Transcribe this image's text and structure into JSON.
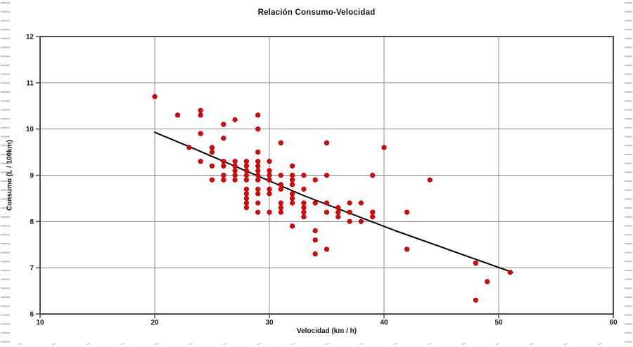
{
  "chart_data": {
    "type": "scatter",
    "title": "Relación Consumo-Velocidad",
    "xlabel": "Velocidad (km / h)",
    "ylabel": "Consumo (L / 100km)",
    "xlim": [
      10,
      60
    ],
    "ylim": [
      6,
      12
    ],
    "x_ticks": [
      10,
      20,
      30,
      40,
      50,
      60
    ],
    "y_ticks": [
      12,
      11,
      10,
      9,
      8,
      7,
      6
    ],
    "grid": true,
    "legend": "none",
    "colors": {
      "point_fill": "#e60000",
      "point_edge": "#a00000",
      "trend_line": "#000000",
      "grid_line": "#909090",
      "frame_line": "#4d4d4d",
      "edge_dash": "#c3c3c3",
      "bottom_mark": "#cfcfcf",
      "text": "#14141c"
    },
    "points": [
      [
        20,
        10.7
      ],
      [
        22,
        10.3
      ],
      [
        23,
        9.6
      ],
      [
        24,
        10.4
      ],
      [
        24,
        10.3
      ],
      [
        24,
        9.9
      ],
      [
        24,
        9.3
      ],
      [
        25,
        9.6
      ],
      [
        25,
        9.5
      ],
      [
        25,
        9.2
      ],
      [
        25,
        8.9
      ],
      [
        26,
        10.1
      ],
      [
        26,
        9.8
      ],
      [
        26,
        9.3
      ],
      [
        26,
        9.2
      ],
      [
        26,
        9.0
      ],
      [
        26,
        8.9
      ],
      [
        27,
        10.2
      ],
      [
        27,
        9.3
      ],
      [
        27,
        9.2
      ],
      [
        27,
        9.1
      ],
      [
        27,
        9.0
      ],
      [
        27,
        8.9
      ],
      [
        28,
        9.3
      ],
      [
        28,
        9.2
      ],
      [
        28,
        9.1
      ],
      [
        28,
        9.0
      ],
      [
        28,
        8.9
      ],
      [
        28,
        8.7
      ],
      [
        28,
        8.6
      ],
      [
        28,
        8.5
      ],
      [
        28,
        8.4
      ],
      [
        28,
        8.3
      ],
      [
        29,
        10.3
      ],
      [
        29,
        10.0
      ],
      [
        29,
        9.5
      ],
      [
        29,
        9.3
      ],
      [
        29,
        9.2
      ],
      [
        29,
        9.1
      ],
      [
        29,
        9.0
      ],
      [
        29,
        8.9
      ],
      [
        29,
        8.7
      ],
      [
        29,
        8.6
      ],
      [
        29,
        8.4
      ],
      [
        29,
        8.2
      ],
      [
        30,
        9.3
      ],
      [
        30,
        9.1
      ],
      [
        30,
        9.0
      ],
      [
        30,
        8.9
      ],
      [
        30,
        8.7
      ],
      [
        30,
        8.6
      ],
      [
        30,
        8.2
      ],
      [
        31,
        9.7
      ],
      [
        31,
        9.0
      ],
      [
        31,
        8.8
      ],
      [
        31,
        8.7
      ],
      [
        31,
        8.4
      ],
      [
        31,
        8.3
      ],
      [
        31,
        8.2
      ],
      [
        32,
        9.2
      ],
      [
        32,
        9.0
      ],
      [
        32,
        8.9
      ],
      [
        32,
        8.8
      ],
      [
        32,
        8.6
      ],
      [
        32,
        8.5
      ],
      [
        32,
        8.4
      ],
      [
        32,
        7.9
      ],
      [
        33,
        9.0
      ],
      [
        33,
        8.7
      ],
      [
        33,
        8.4
      ],
      [
        33,
        8.3
      ],
      [
        33,
        8.2
      ],
      [
        33,
        8.1
      ],
      [
        34,
        8.9
      ],
      [
        34,
        8.4
      ],
      [
        34,
        7.8
      ],
      [
        34,
        7.6
      ],
      [
        34,
        7.3
      ],
      [
        35,
        9.7
      ],
      [
        35,
        9.0
      ],
      [
        35,
        8.4
      ],
      [
        35,
        8.2
      ],
      [
        35,
        7.4
      ],
      [
        36,
        8.3
      ],
      [
        36,
        8.2
      ],
      [
        36,
        8.1
      ],
      [
        37,
        8.4
      ],
      [
        37,
        8.2
      ],
      [
        37,
        8.0
      ],
      [
        38,
        8.4
      ],
      [
        38,
        8.0
      ],
      [
        39,
        9.0
      ],
      [
        39,
        8.2
      ],
      [
        39,
        8.1
      ],
      [
        40,
        9.6
      ],
      [
        42,
        8.2
      ],
      [
        42,
        7.4
      ],
      [
        44,
        8.9
      ],
      [
        48,
        7.1
      ],
      [
        48,
        6.3
      ],
      [
        49,
        6.7
      ],
      [
        51,
        6.9
      ]
    ],
    "trendline": [
      [
        20,
        9.93
      ],
      [
        23,
        9.62
      ],
      [
        33,
        8.56
      ],
      [
        41,
        7.8
      ],
      [
        51.2,
        6.9
      ]
    ]
  }
}
